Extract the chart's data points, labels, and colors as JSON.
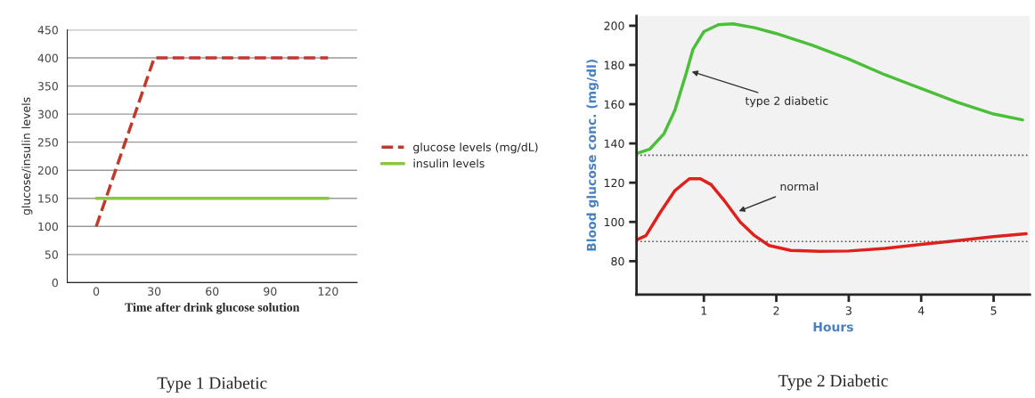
{
  "chart_data": [
    {
      "type": "line",
      "title": "Type 1 Diabetic",
      "xlabel": "Time after drink glucose solution",
      "ylabel": "glucose/insulin levels",
      "categories": [
        "0",
        "30",
        "60",
        "90",
        "120"
      ],
      "series": [
        {
          "name": "glucose levels (mg/dL)",
          "color": "#c0392b",
          "line_style": "dashed",
          "values": [
            100,
            400,
            400,
            400,
            400
          ]
        },
        {
          "name": "insulin levels",
          "color": "#8cc63f",
          "line_style": "solid",
          "values": [
            150,
            150,
            150,
            150,
            150
          ]
        }
      ],
      "ylim": [
        0,
        450
      ],
      "yticks": [
        0,
        50,
        100,
        150,
        200,
        250,
        300,
        350,
        400,
        450
      ],
      "grid": "y",
      "legend": "right"
    },
    {
      "type": "line",
      "title": "Type 2 Diabetic",
      "xlabel": "Hours",
      "ylabel": "Blood glucose conc. (mg/dl)",
      "series": [
        {
          "color": "#4cbf3a",
          "x": [
            0.08,
            0.25,
            0.45,
            0.6,
            0.75,
            0.85,
            1.0,
            1.2,
            1.4,
            1.7,
            2.0,
            2.5,
            3.0,
            3.5,
            4.0,
            4.5,
            5.0,
            5.4
          ],
          "values": [
            135,
            137,
            145,
            157,
            175,
            188,
            197,
            200.5,
            201,
            199,
            196,
            190,
            183,
            175,
            168,
            161,
            155,
            152
          ]
        },
        {
          "color": "#e0201c",
          "x": [
            0.08,
            0.2,
            0.4,
            0.6,
            0.8,
            0.95,
            1.1,
            1.3,
            1.5,
            1.7,
            1.9,
            2.2,
            2.6,
            3.0,
            3.5,
            4.0,
            4.5,
            5.0,
            5.45
          ],
          "values": [
            91,
            93,
            105,
            116,
            122,
            122,
            119,
            110,
            100,
            93,
            88,
            85.5,
            85,
            85.2,
            86.5,
            88.5,
            90.5,
            92.5,
            94
          ]
        }
      ],
      "annotations": [
        {
          "text": "type 2 diabetic",
          "x": 0.8,
          "y": 177
        },
        {
          "text": "normal",
          "x": 1.45,
          "y": 105
        }
      ],
      "ref_lines": [
        {
          "axis": "y",
          "value": 134,
          "color": "#555555",
          "line_style": "dotted"
        },
        {
          "axis": "y",
          "value": 90,
          "color": "#555555",
          "line_style": "dotted"
        }
      ],
      "xlim": [
        0.07,
        5.5
      ],
      "xticks": [
        1,
        2,
        3,
        4,
        5
      ],
      "ylim": [
        63,
        205
      ],
      "yticks": [
        80,
        100,
        120,
        140,
        160,
        180,
        200
      ]
    }
  ]
}
